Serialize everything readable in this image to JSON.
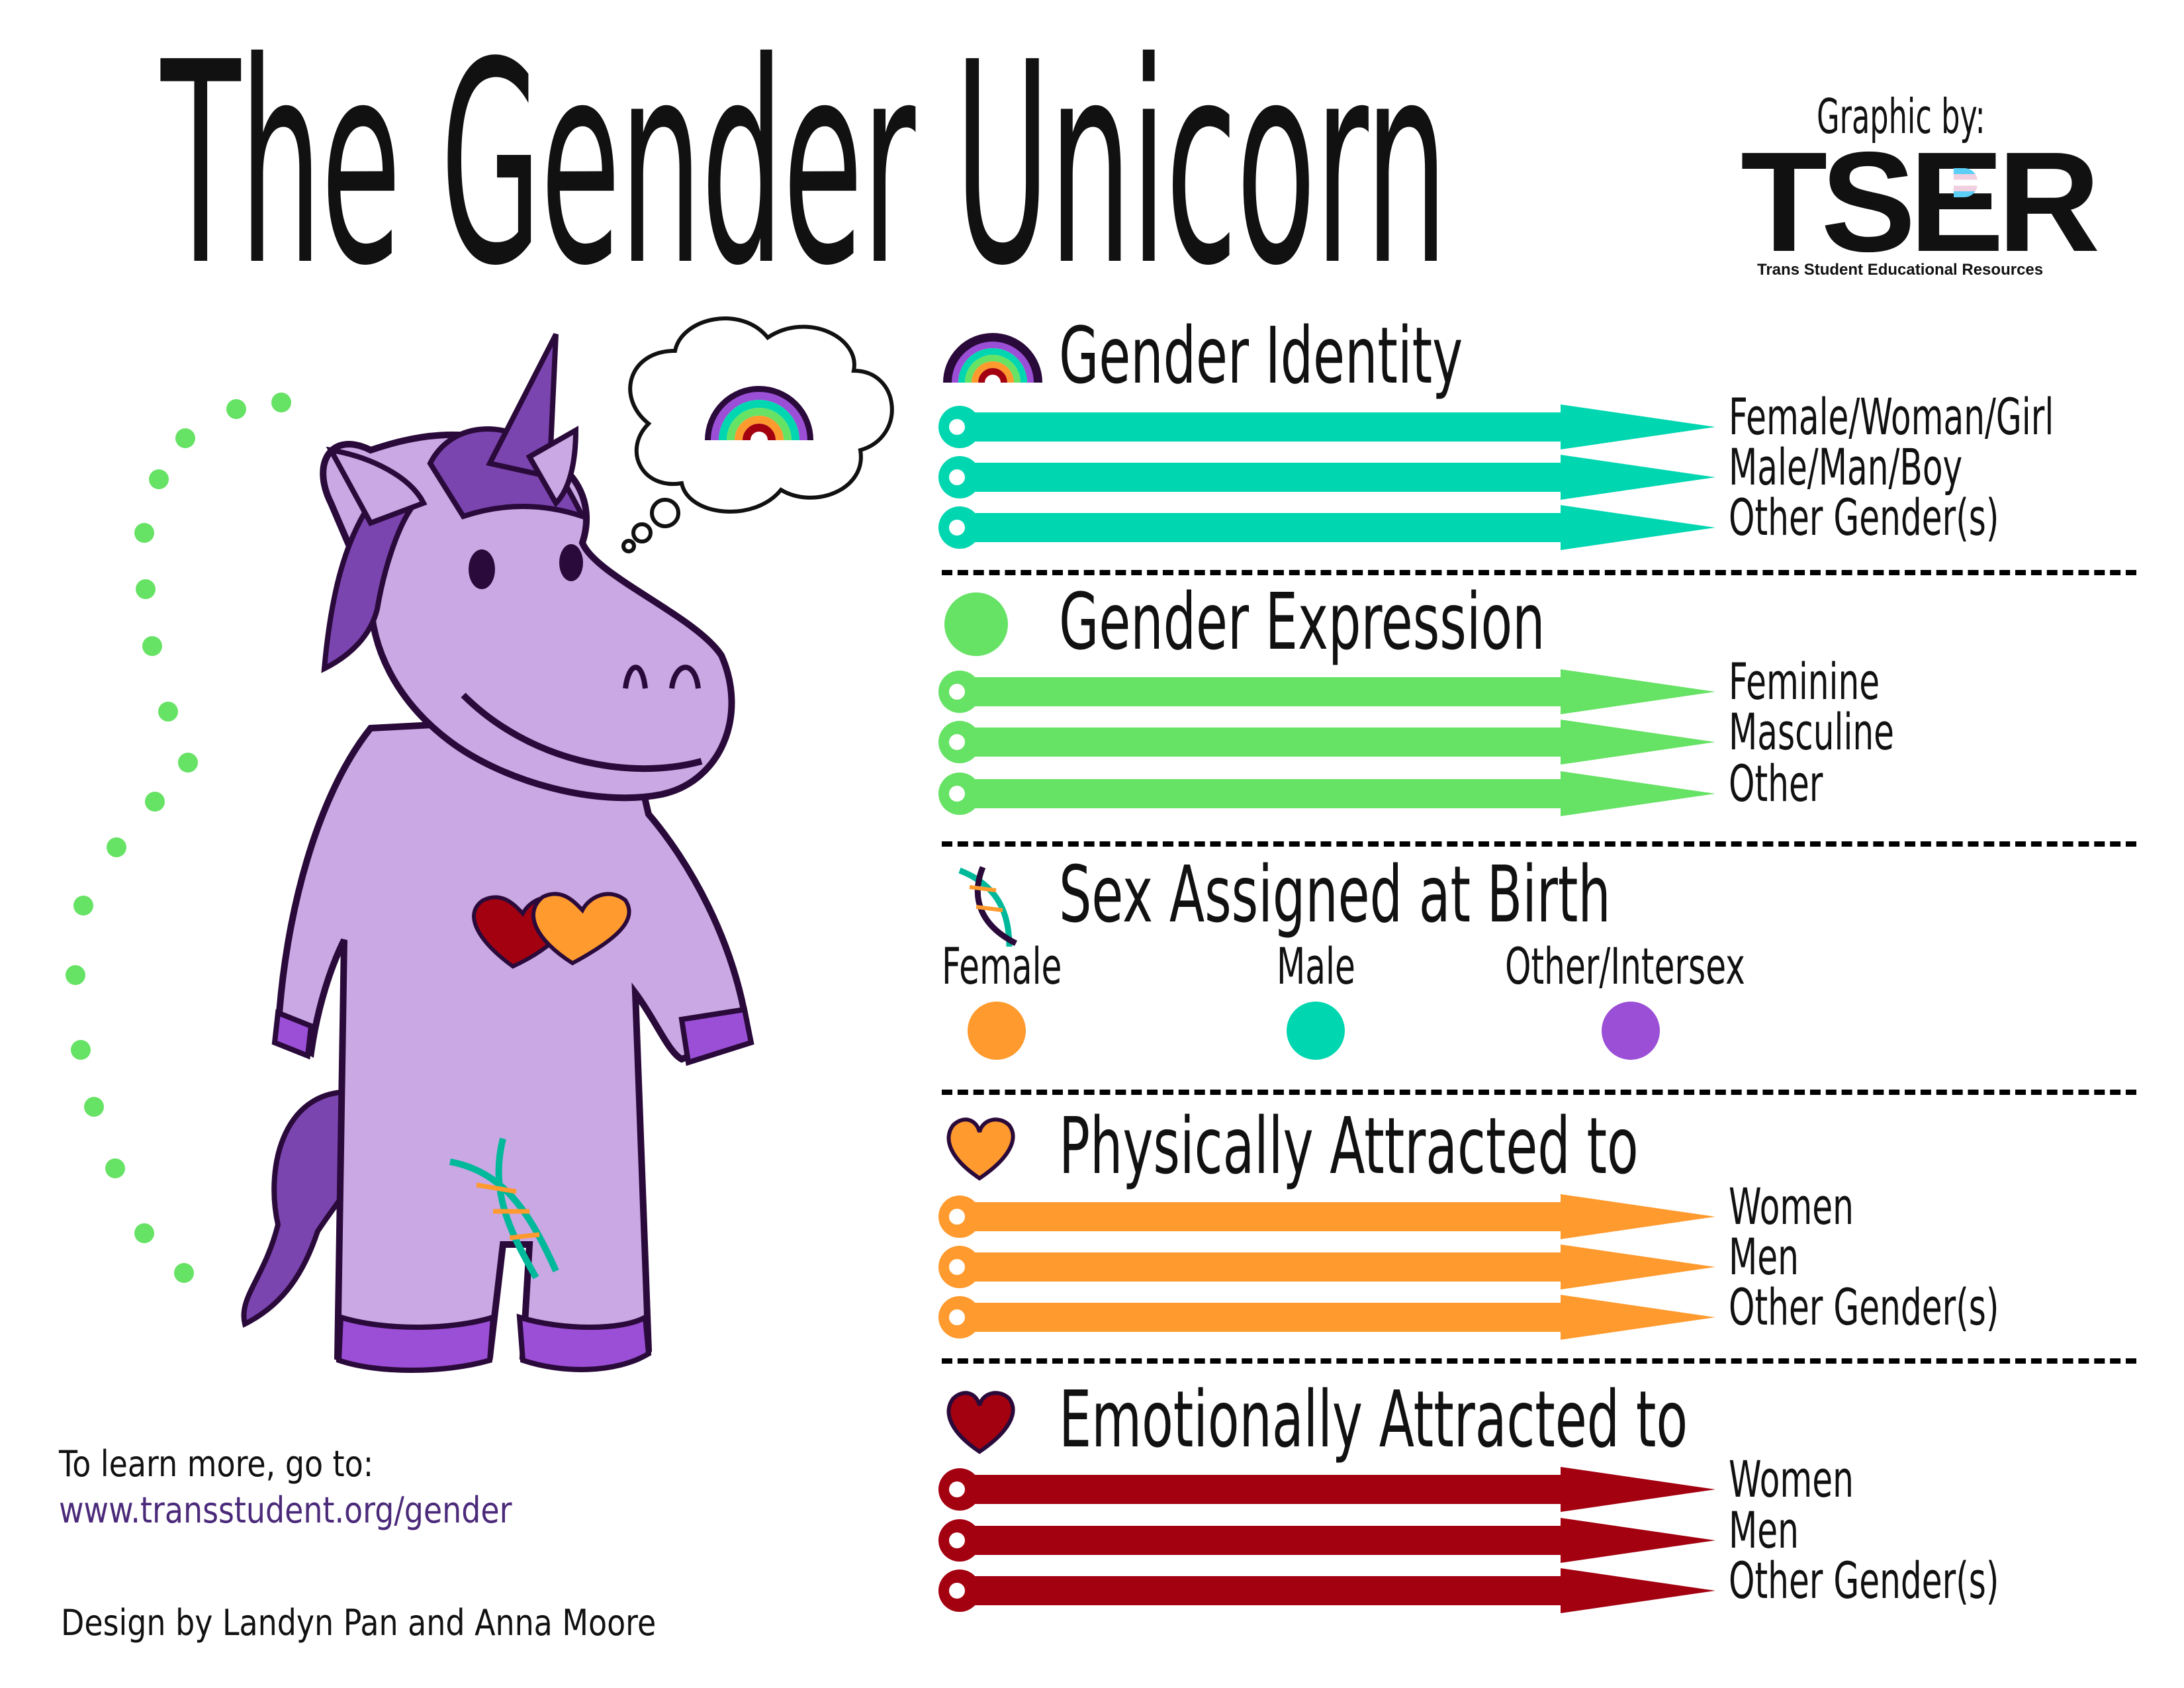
{
  "header": {
    "title": "The Gender Unicorn",
    "credit_label": "Graphic by:",
    "logo_text": "TSER",
    "logo_subtitle": "Trans Student Educational Resources"
  },
  "colors": {
    "identity": "#00d6b0",
    "expression": "#66e265",
    "sex_female": "#ff9a2e",
    "sex_male": "#00d6b0",
    "sex_other": "#9b4fd6",
    "physical": "#ff9a2e",
    "emotional": "#a30010",
    "unicorn": "#c9a8e4",
    "outline": "#2a0a3a"
  },
  "sections": [
    {
      "title": "Gender Identity",
      "icon": "rainbow-icon",
      "color": "#00d6b0",
      "options": [
        "Female/Woman/Girl",
        "Male/Man/Boy",
        "Other Gender(s)"
      ]
    },
    {
      "title": "Gender Expression",
      "icon": "green-circle-icon",
      "color": "#66e265",
      "options": [
        "Feminine",
        "Masculine",
        "Other"
      ]
    },
    {
      "title": "Sex Assigned at Birth",
      "icon": "dna-icon",
      "points": [
        {
          "label": "Female",
          "color": "#ff9a2e"
        },
        {
          "label": "Male",
          "color": "#00d6b0"
        },
        {
          "label": "Other/Intersex",
          "color": "#9b4fd6"
        }
      ]
    },
    {
      "title": "Physically Attracted to",
      "icon": "orange-heart-icon",
      "color": "#ff9a2e",
      "options": [
        "Women",
        "Men",
        "Other Gender(s)"
      ]
    },
    {
      "title": "Emotionally Attracted to",
      "icon": "red-heart-icon",
      "color": "#a30010",
      "options": [
        "Women",
        "Men",
        "Other Gender(s)"
      ]
    }
  ],
  "footer": {
    "learn_more": "To learn more, go to:",
    "url": "www.transstudent.org/gender",
    "design_credit": "Design by Landyn Pan and Anna Moore"
  }
}
